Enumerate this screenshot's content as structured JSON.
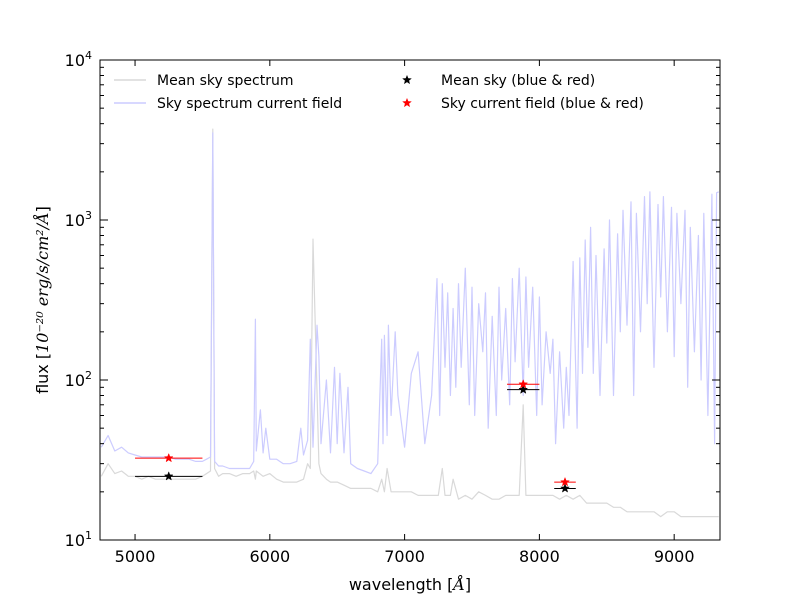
{
  "chart_data": {
    "type": "line",
    "xscale": "linear",
    "yscale": "log",
    "xlim": [
      4740,
      9340
    ],
    "ylim": [
      10,
      10000
    ],
    "xlabel_prefix": "wavelength [",
    "xlabel_math": "Å",
    "xlabel_suffix": "]",
    "ylabel_prefix": "flux [",
    "ylabel_math": "10⁻²⁰ erg/s/cm²/Å",
    "ylabel_suffix": "]",
    "xticks": [
      5000,
      6000,
      7000,
      8000,
      9000
    ],
    "xtick_labels": [
      "5000",
      "6000",
      "7000",
      "8000",
      "9000"
    ],
    "yticks": [
      10,
      100,
      1000,
      10000
    ],
    "ytick_labels": [
      {
        "base": "10",
        "exp": "1"
      },
      {
        "base": "10",
        "exp": "2"
      },
      {
        "base": "10",
        "exp": "3"
      },
      {
        "base": "10",
        "exp": "4"
      }
    ],
    "legend": {
      "placement": "top",
      "entries": [
        {
          "label": "Mean sky spectrum",
          "kind": "line",
          "color": "#d9d9d9"
        },
        {
          "label": "Sky spectrum current field",
          "kind": "line",
          "color": "#ccccff"
        },
        {
          "label": "Mean sky (blue & red)",
          "kind": "star",
          "color": "#000000"
        },
        {
          "label": "Sky current field (blue & red)",
          "kind": "star",
          "color": "#ff0000"
        }
      ]
    },
    "series": [
      {
        "name": "Mean sky spectrum",
        "color": "#d9d9d9",
        "x": [
          4750,
          4800,
          4850,
          4900,
          4950,
          5000,
          5050,
          5100,
          5150,
          5200,
          5250,
          5300,
          5350,
          5400,
          5450,
          5500,
          5530,
          5560,
          5577,
          5590,
          5620,
          5650,
          5700,
          5750,
          5800,
          5850,
          5880,
          5893,
          5900,
          5950,
          6000,
          6050,
          6100,
          6150,
          6200,
          6250,
          6280,
          6300,
          6320,
          6364,
          6380,
          6420,
          6450,
          6500,
          6550,
          6600,
          6650,
          6700,
          6750,
          6800,
          6830,
          6850,
          6870,
          6900,
          6950,
          7000,
          7050,
          7100,
          7150,
          7200,
          7250,
          7280,
          7300,
          7320,
          7340,
          7360,
          7400,
          7450,
          7500,
          7550,
          7600,
          7650,
          7700,
          7750,
          7800,
          7850,
          7880,
          7900,
          7950,
          8000,
          8050,
          8100,
          8150,
          8200,
          8250,
          8300,
          8350,
          8400,
          8450,
          8500,
          8550,
          8600,
          8650,
          8700,
          8750,
          8800,
          8850,
          8900,
          8950,
          9000,
          9050,
          9100,
          9150,
          9200,
          9250,
          9300,
          9330
        ],
        "y": [
          25,
          30,
          26,
          27,
          25,
          25,
          24,
          25,
          24,
          24,
          24,
          24,
          24,
          24,
          24,
          25,
          26,
          27,
          3700,
          28,
          25,
          26,
          26,
          25,
          26,
          26,
          27,
          24,
          27,
          25,
          26,
          24,
          23,
          23,
          23,
          24,
          30,
          28,
          760,
          30,
          26,
          24,
          23,
          23,
          22,
          21,
          21,
          21,
          21,
          20,
          24,
          20,
          28,
          20,
          20,
          20,
          20,
          19,
          19,
          19,
          19,
          28,
          19,
          19,
          19,
          24,
          18,
          19,
          18,
          20,
          19,
          18,
          18,
          19,
          19,
          19,
          70,
          19,
          19,
          19,
          19,
          19,
          18,
          19,
          18,
          19,
          17,
          17,
          17,
          17,
          16,
          16,
          15,
          15,
          15,
          15,
          15,
          14,
          15,
          15,
          14,
          14,
          14,
          14,
          14,
          14,
          14
        ]
      },
      {
        "name": "Sky spectrum current field",
        "color": "#ccccff",
        "x": [
          4750,
          4800,
          4850,
          4900,
          4950,
          5000,
          5050,
          5100,
          5150,
          5200,
          5250,
          5300,
          5350,
          5400,
          5450,
          5500,
          5530,
          5560,
          5577,
          5590,
          5620,
          5650,
          5700,
          5750,
          5800,
          5850,
          5880,
          5893,
          5900,
          5930,
          5950,
          5970,
          6000,
          6050,
          6100,
          6150,
          6200,
          6230,
          6250,
          6280,
          6300,
          6320,
          6350,
          6364,
          6380,
          6420,
          6450,
          6480,
          6500,
          6520,
          6550,
          6580,
          6600,
          6650,
          6700,
          6750,
          6800,
          6830,
          6840,
          6850,
          6870,
          6880,
          6900,
          6930,
          6950,
          7000,
          7050,
          7100,
          7150,
          7200,
          7240,
          7260,
          7280,
          7300,
          7320,
          7340,
          7360,
          7380,
          7400,
          7420,
          7450,
          7480,
          7500,
          7520,
          7550,
          7580,
          7600,
          7620,
          7650,
          7680,
          7700,
          7720,
          7750,
          7780,
          7800,
          7820,
          7850,
          7880,
          7900,
          7920,
          7950,
          7980,
          8000,
          8020,
          8050,
          8080,
          8100,
          8120,
          8150,
          8180,
          8200,
          8220,
          8250,
          8280,
          8300,
          8320,
          8340,
          8360,
          8380,
          8400,
          8420,
          8450,
          8480,
          8500,
          8520,
          8550,
          8580,
          8600,
          8620,
          8650,
          8680,
          8700,
          8720,
          8750,
          8780,
          8800,
          8820,
          8850,
          8880,
          8900,
          8920,
          8950,
          8980,
          9000,
          9020,
          9050,
          9080,
          9100,
          9120,
          9150,
          9180,
          9200,
          9220,
          9250,
          9280,
          9300,
          9315,
          9330
        ],
        "y": [
          38,
          45,
          36,
          38,
          35,
          34,
          33,
          33,
          33,
          33,
          33,
          32,
          32,
          32,
          31,
          31,
          32,
          33,
          3500,
          31,
          29,
          29,
          28,
          28,
          28,
          28,
          31,
          240,
          36,
          65,
          35,
          50,
          32,
          32,
          30,
          30,
          31,
          50,
          34,
          42,
          180,
          38,
          220,
          140,
          40,
          100,
          35,
          120,
          40,
          110,
          35,
          90,
          30,
          28,
          27,
          26,
          30,
          180,
          40,
          190,
          45,
          220,
          60,
          200,
          80,
          38,
          110,
          150,
          40,
          80,
          430,
          60,
          400,
          120,
          350,
          80,
          280,
          90,
          400,
          120,
          500,
          70,
          380,
          60,
          300,
          150,
          350,
          50,
          250,
          60,
          380,
          100,
          280,
          70,
          430,
          130,
          500,
          80,
          440,
          120,
          380,
          60,
          330,
          70,
          200,
          110,
          180,
          40,
          150,
          50,
          120,
          60,
          550,
          50,
          580,
          110,
          750,
          160,
          900,
          110,
          600,
          80,
          660,
          170,
          1000,
          80,
          820,
          200,
          1150,
          220,
          1300,
          80,
          1100,
          200,
          1400,
          300,
          1500,
          120,
          1250,
          330,
          1400,
          200,
          1200,
          140,
          1100,
          300,
          1150,
          90,
          900,
          150,
          800,
          100,
          1100,
          60,
          1450,
          40,
          1480,
          1500
        ]
      }
    ],
    "points": [
      {
        "group": "Mean sky (blue & red)",
        "color": "#000000",
        "x": 5250,
        "y": 25,
        "xerr_low": 5000,
        "xerr_high": 5500
      },
      {
        "group": "Mean sky (blue & red)",
        "color": "#000000",
        "x": 7880,
        "y": 87,
        "xerr_low": 7760,
        "xerr_high": 8000
      },
      {
        "group": "Mean sky (blue & red)",
        "color": "#000000",
        "x": 8190,
        "y": 21,
        "xerr_low": 8110,
        "xerr_high": 8270
      },
      {
        "group": "Sky current field (blue & red)",
        "color": "#ff0000",
        "x": 5250,
        "y": 32.5,
        "xerr_low": 5000,
        "xerr_high": 5500
      },
      {
        "group": "Sky current field (blue & red)",
        "color": "#ff0000",
        "x": 7880,
        "y": 94,
        "xerr_low": 7760,
        "xerr_high": 8000
      },
      {
        "group": "Sky current field (blue & red)",
        "color": "#ff0000",
        "x": 8190,
        "y": 23,
        "xerr_low": 8110,
        "xerr_high": 8270
      }
    ]
  }
}
